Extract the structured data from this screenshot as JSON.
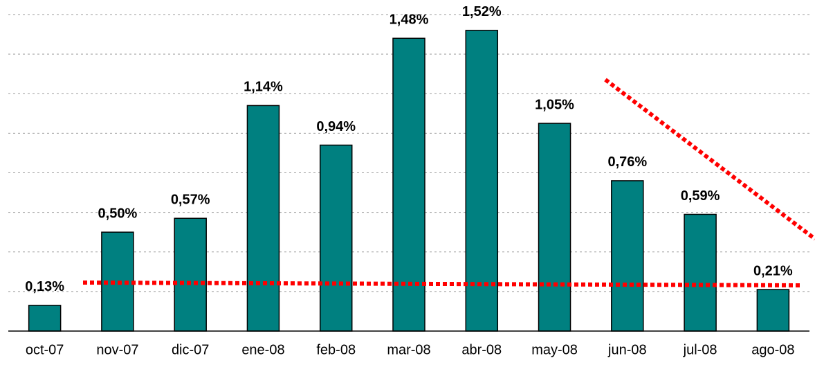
{
  "chart_data": {
    "type": "bar",
    "categories": [
      "oct-07",
      "nov-07",
      "dic-07",
      "ene-08",
      "feb-08",
      "mar-08",
      "abr-08",
      "may-08",
      "jun-08",
      "jul-08",
      "ago-08"
    ],
    "values": [
      0.13,
      0.5,
      0.57,
      1.14,
      0.94,
      1.48,
      1.52,
      1.05,
      0.76,
      0.59,
      0.21
    ],
    "value_labels": [
      "0,13%",
      "0,50%",
      "0,57%",
      "1,14%",
      "0,94%",
      "1,48%",
      "1,52%",
      "1,05%",
      "0,76%",
      "0,59%",
      "0,21%"
    ],
    "color": "#008080",
    "ylim": [
      0,
      1.6
    ],
    "yticks": [
      0,
      0.2,
      0.4,
      0.6,
      0.8,
      1.0,
      1.2,
      1.4,
      1.6
    ],
    "grid": true
  }
}
